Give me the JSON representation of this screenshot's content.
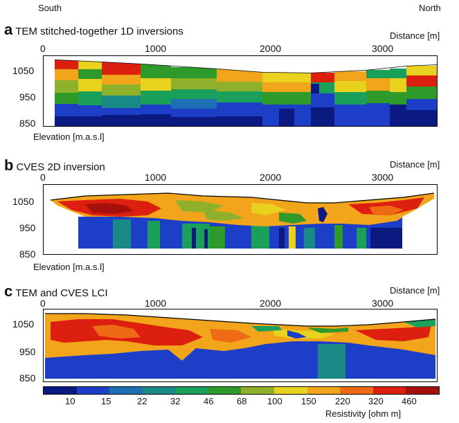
{
  "orientation": {
    "left": "South",
    "right": "North"
  },
  "panels": [
    {
      "letter": "a",
      "title": "TEM stitched-together 1D inversions",
      "distance_label": "Distance [m]",
      "elevation_label": "Elevation [m.a.s.l]",
      "x_ticks": [
        "0",
        "1000",
        "2000",
        "3000"
      ],
      "y_ticks": [
        "1050",
        "950",
        "850"
      ]
    },
    {
      "letter": "b",
      "title": "CVES 2D inversion",
      "distance_label": "Distance [m]",
      "elevation_label": "Elevation [m.a.s.l]",
      "x_ticks": [
        "0",
        "1000",
        "2000",
        "3000"
      ],
      "y_ticks": [
        "1050",
        "950",
        "850"
      ]
    },
    {
      "letter": "c",
      "title": "TEM and CVES LCI",
      "distance_label": "Distance [m]",
      "x_ticks": [
        "0",
        "1000",
        "2000",
        "3000"
      ],
      "y_ticks": [
        "1050",
        "950",
        "850"
      ]
    }
  ],
  "colorbar": {
    "ticks": [
      "10",
      "15",
      "22",
      "32",
      "46",
      "68",
      "100",
      "150",
      "220",
      "320",
      "460"
    ],
    "label": "Resistivity [ohm m]",
    "colors": [
      "#0a1a80",
      "#1d3fc8",
      "#1f6fb4",
      "#1a8a86",
      "#1aa05a",
      "#2e9a2a",
      "#8fb02a",
      "#e8d21e",
      "#f2a51a",
      "#ee6a14",
      "#dd1f10",
      "#a5100c"
    ]
  }
}
